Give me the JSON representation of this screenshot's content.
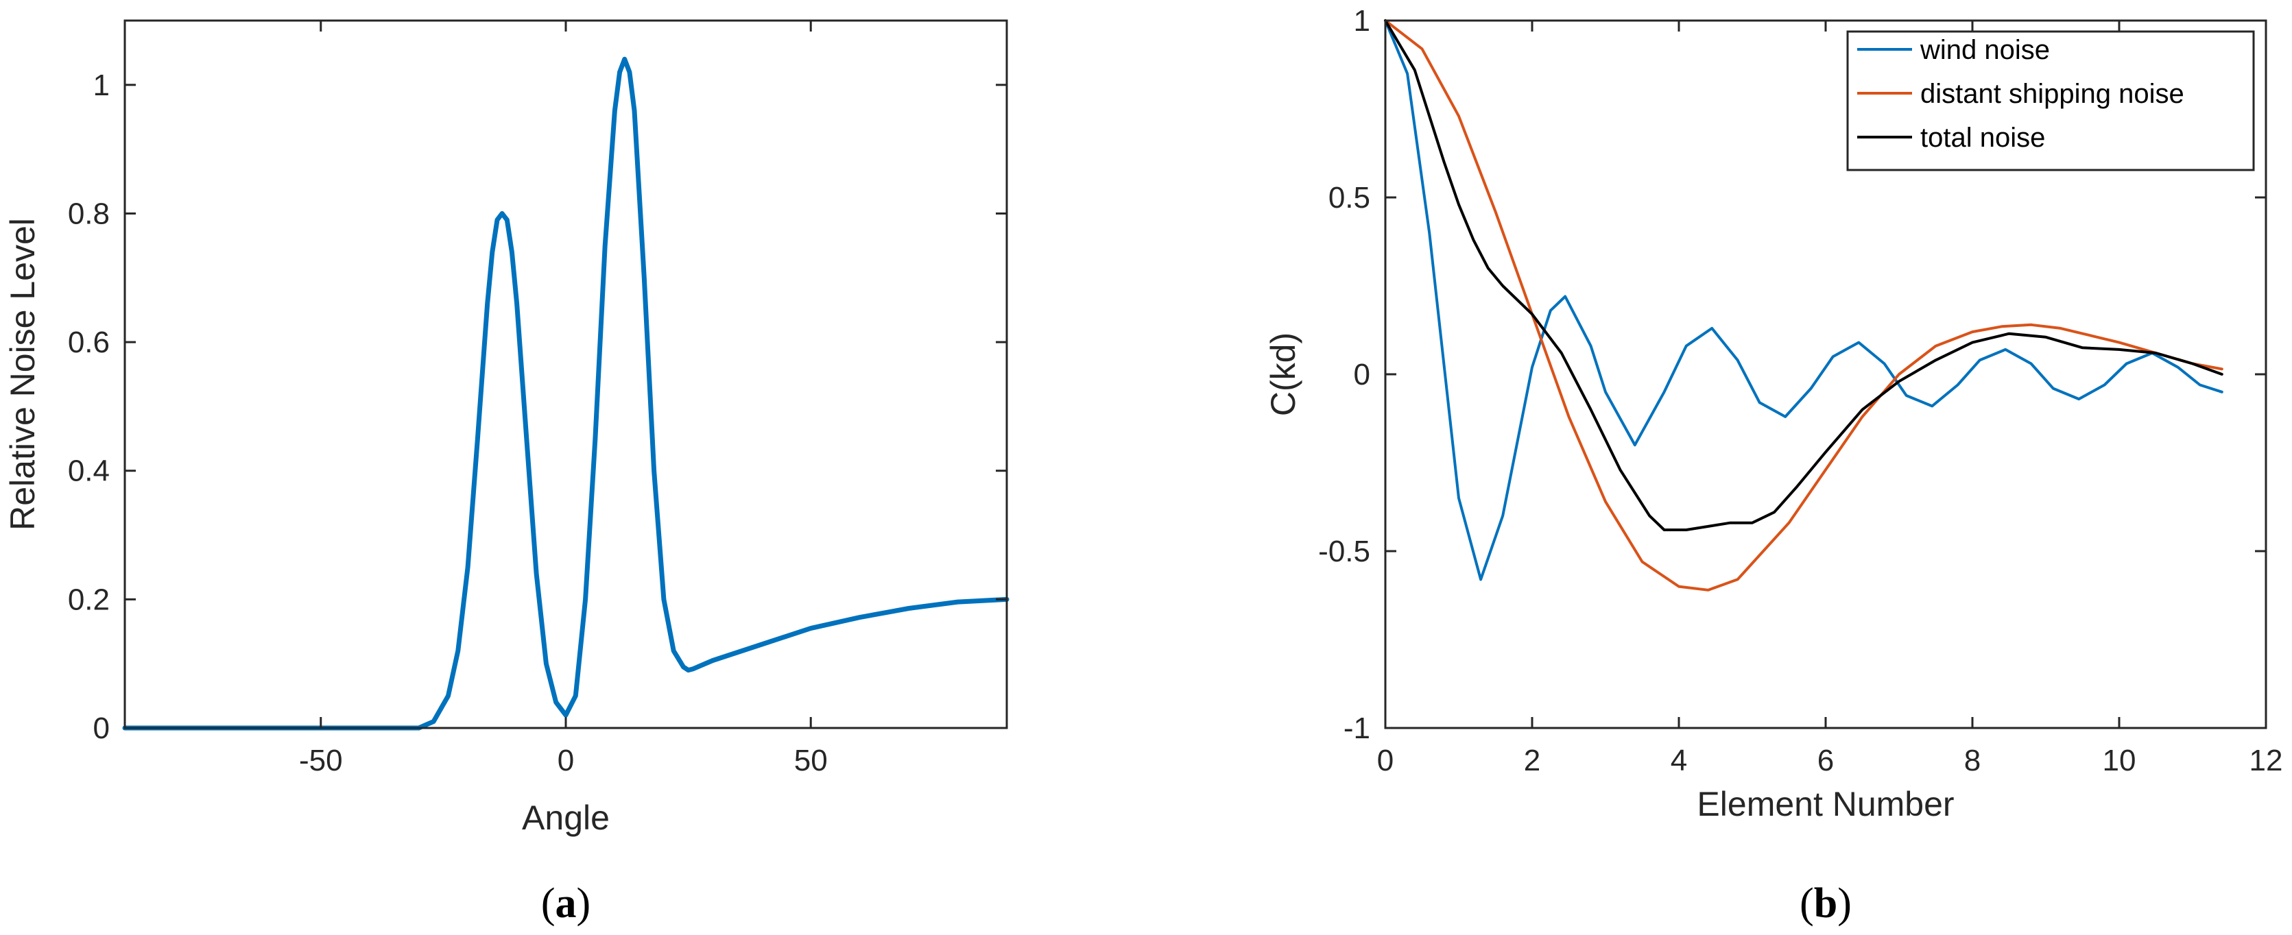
{
  "chart_data": [
    {
      "type": "line",
      "panel_label": "a",
      "xlabel": "Angle",
      "ylabel": "Relative Noise Level",
      "xlim": [
        -90,
        90
      ],
      "ylim": [
        0,
        1.1
      ],
      "xticks": [
        -50,
        0,
        50
      ],
      "yticks": [
        0,
        0.2,
        0.4,
        0.6,
        0.8,
        1
      ],
      "grid": false,
      "series": [
        {
          "color": "#0072BD",
          "x": [
            -90,
            -60,
            -40,
            -30,
            -27,
            -24,
            -22,
            -20,
            -18,
            -16,
            -15,
            -14,
            -13,
            -12,
            -11,
            -10,
            -8,
            -6,
            -4,
            -2,
            0,
            2,
            4,
            6,
            8,
            10,
            11,
            12,
            13,
            14,
            16,
            18,
            20,
            22,
            24,
            25,
            26,
            30,
            40,
            50,
            60,
            70,
            80,
            90
          ],
          "y": [
            0,
            0,
            0,
            0,
            0.01,
            0.05,
            0.12,
            0.25,
            0.45,
            0.66,
            0.74,
            0.79,
            0.8,
            0.79,
            0.74,
            0.66,
            0.45,
            0.24,
            0.1,
            0.04,
            0.02,
            0.05,
            0.2,
            0.45,
            0.75,
            0.96,
            1.02,
            1.04,
            1.02,
            0.96,
            0.7,
            0.4,
            0.2,
            0.12,
            0.095,
            0.09,
            0.092,
            0.105,
            0.13,
            0.155,
            0.172,
            0.186,
            0.196,
            0.2
          ]
        }
      ]
    },
    {
      "type": "line",
      "panel_label": "b",
      "xlabel": "Element Number",
      "ylabel": "C(kd)",
      "xlim": [
        0,
        12
      ],
      "ylim": [
        -1,
        1
      ],
      "xticks": [
        0,
        2,
        4,
        6,
        8,
        10,
        12
      ],
      "yticks": [
        -1,
        -0.5,
        0,
        0.5,
        1
      ],
      "grid": false,
      "legend_position": "top-right",
      "series": [
        {
          "name": "wind noise",
          "color": "#0072BD",
          "x": [
            0,
            0.3,
            0.6,
            1.0,
            1.3,
            1.6,
            2.0,
            2.25,
            2.45,
            2.8,
            3.0,
            3.4,
            3.8,
            4.1,
            4.45,
            4.8,
            5.1,
            5.45,
            5.8,
            6.1,
            6.45,
            6.8,
            7.1,
            7.45,
            7.8,
            8.1,
            8.45,
            8.8,
            9.1,
            9.45,
            9.8,
            10.1,
            10.45,
            10.8,
            11.1,
            11.4
          ],
          "y": [
            1,
            0.85,
            0.4,
            -0.35,
            -0.58,
            -0.4,
            0.02,
            0.18,
            0.22,
            0.08,
            -0.05,
            -0.2,
            -0.05,
            0.08,
            0.13,
            0.04,
            -0.08,
            -0.12,
            -0.04,
            0.05,
            0.09,
            0.03,
            -0.06,
            -0.09,
            -0.03,
            0.04,
            0.07,
            0.03,
            -0.04,
            -0.07,
            -0.03,
            0.03,
            0.06,
            0.02,
            -0.03,
            -0.05
          ]
        },
        {
          "name": "distant shipping noise",
          "color": "#D95319",
          "x": [
            0,
            0.5,
            1.0,
            1.5,
            2.0,
            2.5,
            3.0,
            3.5,
            4.0,
            4.4,
            4.8,
            5.5,
            6.0,
            6.5,
            7.0,
            7.5,
            8.0,
            8.4,
            8.8,
            9.2,
            9.6,
            10.0,
            10.5,
            11.0,
            11.4
          ],
          "y": [
            1,
            0.92,
            0.73,
            0.46,
            0.17,
            -0.12,
            -0.36,
            -0.53,
            -0.6,
            -0.61,
            -0.58,
            -0.42,
            -0.27,
            -0.12,
            0,
            0.08,
            0.12,
            0.135,
            0.14,
            0.13,
            0.11,
            0.09,
            0.06,
            0.03,
            0.015
          ]
        },
        {
          "name": "total noise",
          "color": "#000000",
          "x": [
            0,
            0.4,
            0.8,
            1.0,
            1.2,
            1.4,
            1.6,
            2.0,
            2.4,
            2.8,
            3.2,
            3.6,
            3.8,
            4.1,
            4.4,
            4.7,
            5.0,
            5.3,
            5.6,
            6.0,
            6.5,
            7.0,
            7.5,
            8.0,
            8.5,
            9.0,
            9.5,
            10.0,
            10.5,
            11.0,
            11.4
          ],
          "y": [
            1,
            0.86,
            0.6,
            0.48,
            0.38,
            0.3,
            0.25,
            0.17,
            0.06,
            -0.1,
            -0.27,
            -0.4,
            -0.44,
            -0.44,
            -0.43,
            -0.42,
            -0.42,
            -0.39,
            -0.32,
            -0.22,
            -0.1,
            -0.02,
            0.04,
            0.09,
            0.115,
            0.105,
            0.075,
            0.07,
            0.06,
            0.03,
            0
          ]
        }
      ]
    }
  ]
}
